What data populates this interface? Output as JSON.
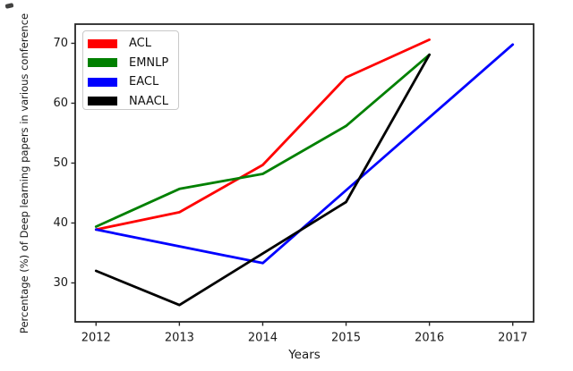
{
  "chart_data": {
    "type": "line",
    "title": "",
    "xlabel": "Years",
    "ylabel": "Percentage (%) of Deep learning papers in various conference",
    "xlim": [
      2011.75,
      2017.25
    ],
    "ylim": [
      23.5,
      73.2
    ],
    "x_ticks": [
      2012,
      2013,
      2014,
      2015,
      2016,
      2017
    ],
    "y_ticks": [
      30,
      40,
      50,
      60,
      70
    ],
    "grid": false,
    "legend_position": "upper-left",
    "axis_color": "#262626",
    "line_width": 2.8,
    "series": [
      {
        "name": "ACL",
        "color": "#ff0000",
        "points": [
          [
            2012,
            38.9
          ],
          [
            2013,
            41.8
          ],
          [
            2014,
            49.7
          ],
          [
            2015,
            64.3
          ],
          [
            2016,
            70.6
          ]
        ]
      },
      {
        "name": "EMNLP",
        "color": "#008000",
        "points": [
          [
            2012,
            39.4
          ],
          [
            2013,
            45.7
          ],
          [
            2014,
            48.2
          ],
          [
            2015,
            56.2
          ],
          [
            2016,
            68.1
          ]
        ]
      },
      {
        "name": "EACL",
        "color": "#0000ff",
        "points": [
          [
            2012,
            38.9
          ],
          [
            2014,
            33.3
          ],
          [
            2017,
            69.8
          ]
        ]
      },
      {
        "name": "NAACL",
        "color": "#000000",
        "points": [
          [
            2012,
            32.0
          ],
          [
            2013,
            26.3
          ],
          [
            2015,
            43.5
          ],
          [
            2016,
            68.1
          ]
        ]
      }
    ]
  }
}
